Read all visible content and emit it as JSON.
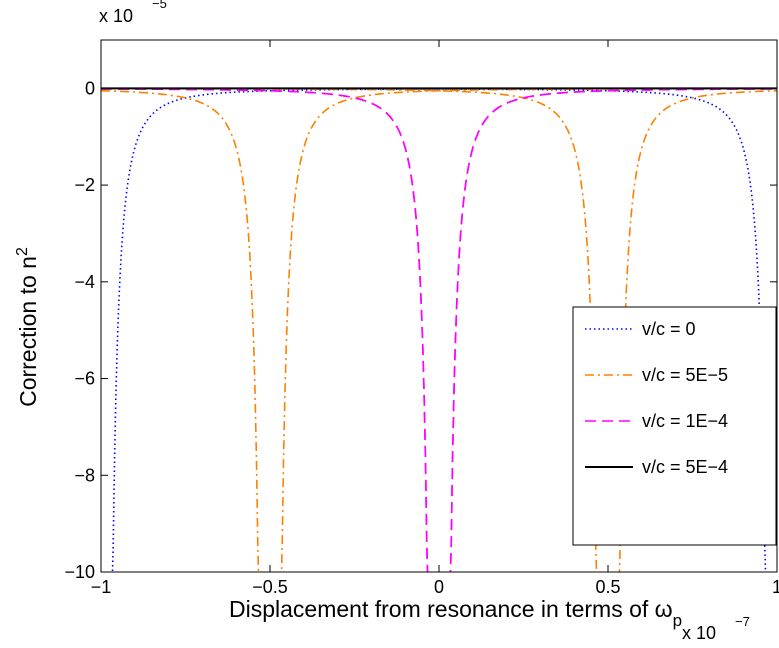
{
  "chart_data": {
    "type": "line",
    "xlabel": "Displacement from resonance in terms of ω",
    "xlabel_subscript": "p",
    "ylabel": "Correction to n",
    "ylabel_superscript": "2",
    "x_multiplier": {
      "base": "x 10",
      "exp": "−7"
    },
    "y_multiplier": {
      "base": "x 10",
      "exp": "−5"
    },
    "xlim": [
      -1,
      1
    ],
    "ylim": [
      -10,
      1
    ],
    "x_ticks": [
      {
        "value": -1,
        "label": "−1"
      },
      {
        "value": -0.5,
        "label": "−0.5"
      },
      {
        "value": 0,
        "label": "0"
      },
      {
        "value": 0.5,
        "label": "0.5"
      },
      {
        "value": 1,
        "label": "1"
      }
    ],
    "y_ticks": [
      {
        "value": 0,
        "label": "0"
      },
      {
        "value": -2,
        "label": "−2"
      },
      {
        "value": -4,
        "label": "−4"
      },
      {
        "value": -6,
        "label": "−6"
      },
      {
        "value": -8,
        "label": "−8"
      },
      {
        "value": -10,
        "label": "−10"
      }
    ],
    "grid": false,
    "legend_position": "lower-right",
    "series": [
      {
        "name": "v/c = 0",
        "color": "#0000ff",
        "dash": "dotted",
        "kind": "dip",
        "k": 0.0123,
        "a": 1
      },
      {
        "name": "v/c = 5E−5",
        "color": "#ff8000",
        "dash": "dashdot",
        "kind": "dip",
        "k": 0.0123,
        "a": 0.5
      },
      {
        "name": "v/c = 1E−4",
        "color": "#ff00ff",
        "dash": "dashed",
        "kind": "dip",
        "k": 0.0123,
        "a": 0
      },
      {
        "name": "v/c = 5E−4",
        "color": "#000000",
        "dash": "solid",
        "kind": "flat",
        "value": 0
      }
    ]
  }
}
